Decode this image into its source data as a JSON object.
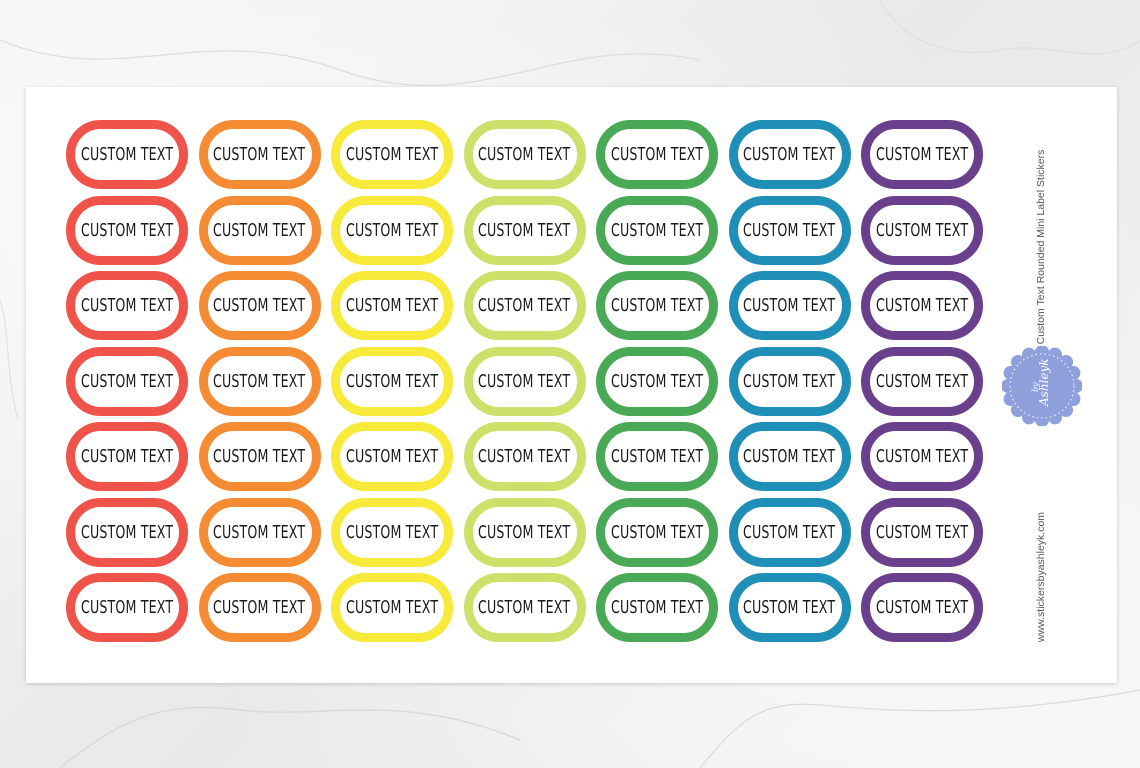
{
  "sheet": {
    "side_title": "Custom Text Rounded Mini Label Stickers",
    "website": "www.stickersbyashleyk.com",
    "logo_text": "Ashleyk",
    "logo_by": "by"
  },
  "sticker_label": "CUSTOM TEXT",
  "columns": [
    {
      "color": "#ef5349",
      "name": "red"
    },
    {
      "color": "#f58c34",
      "name": "orange"
    },
    {
      "color": "#f7ea3a",
      "name": "yellow"
    },
    {
      "color": "#cde06a",
      "name": "lime"
    },
    {
      "color": "#4aa956",
      "name": "green"
    },
    {
      "color": "#1f8fb8",
      "name": "blue"
    },
    {
      "color": "#6a3f8c",
      "name": "purple"
    }
  ],
  "rows": 7,
  "badge_color": "#8fa0dc"
}
